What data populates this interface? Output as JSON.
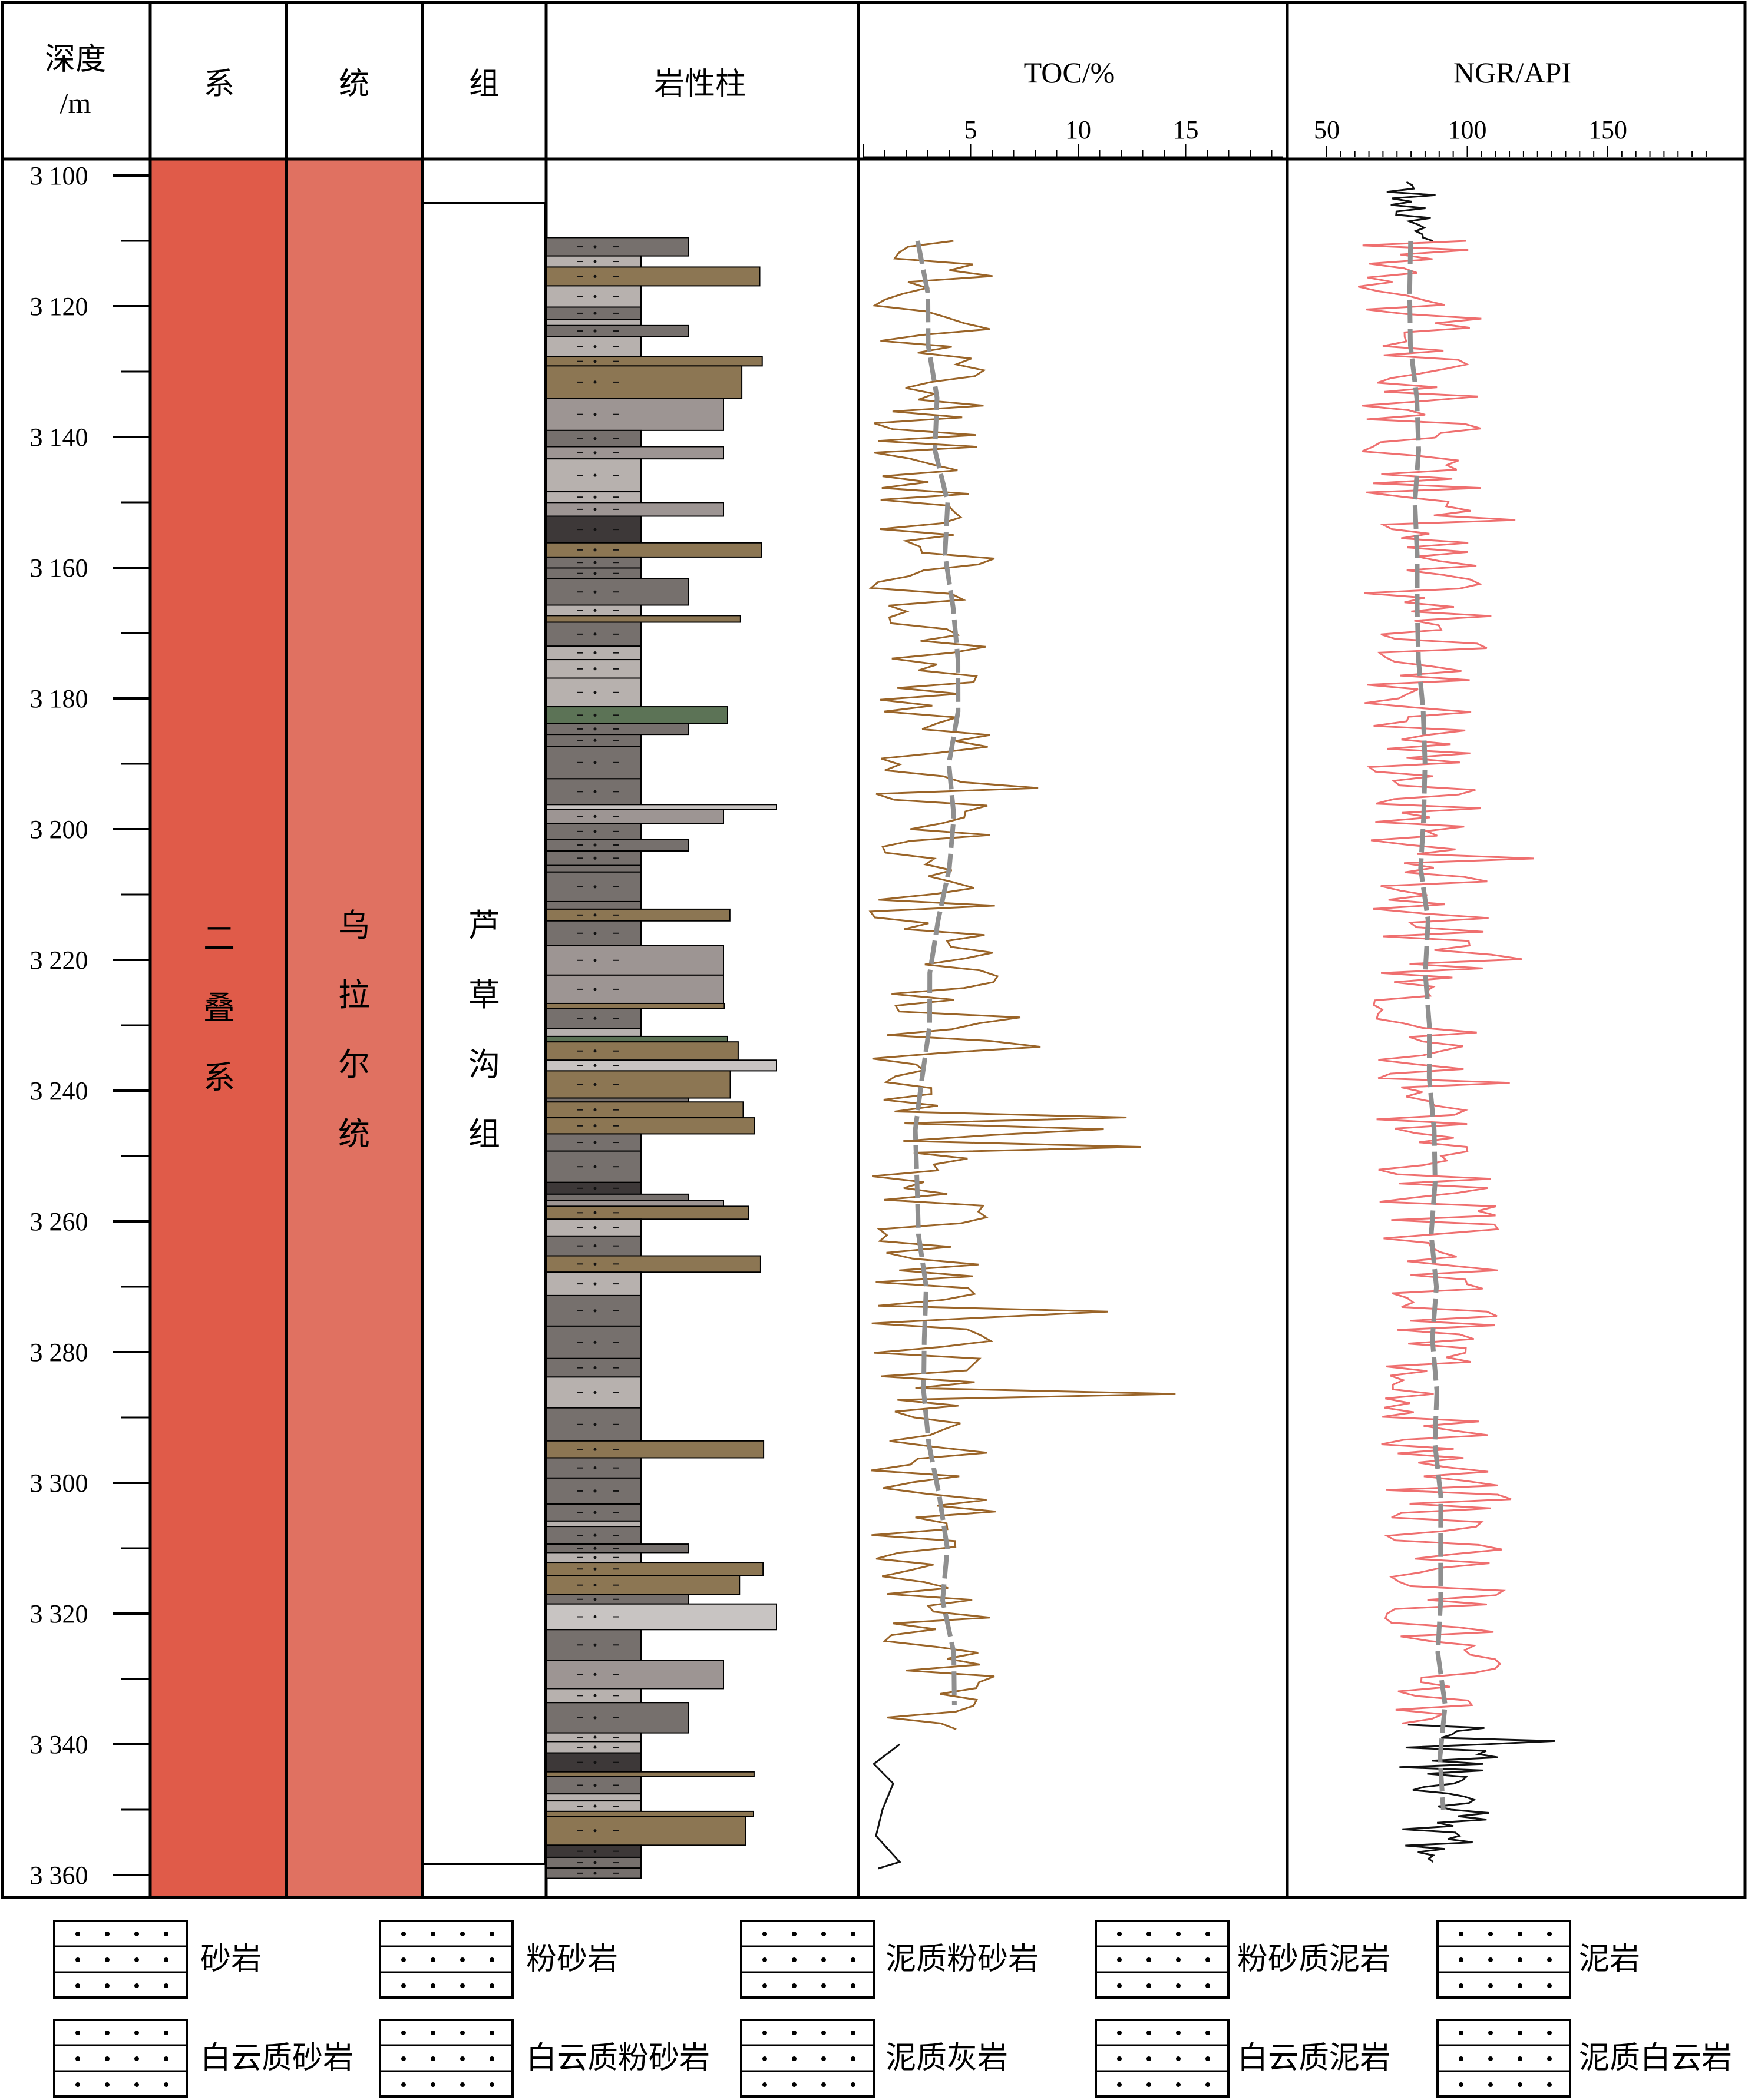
{
  "headers": {
    "depth": "深度",
    "depth_unit": "/m",
    "system": "系",
    "series": "统",
    "formation": "组",
    "lithology": "岩性柱",
    "toc": "TOC/%",
    "ngr": "NGR/API"
  },
  "depth_ticks": [
    "3 100",
    "3 120",
    "3 140",
    "3 160",
    "3 180",
    "3 200",
    "3 220",
    "3 240",
    "3 260",
    "3 280",
    "3 300",
    "3 320",
    "3 340",
    "3 360"
  ],
  "toc_ticks": [
    "5",
    "10",
    "15"
  ],
  "ngr_ticks": [
    "50",
    "100",
    "150"
  ],
  "units": {
    "system": [
      "二",
      "叠",
      "系"
    ],
    "series": [
      "乌",
      "拉",
      "尔",
      "统"
    ],
    "formation": [
      "芦",
      "草",
      "沟",
      "组"
    ]
  },
  "colors": {
    "system_fill": "#e05b49",
    "series_fill": "#e07161",
    "toc_curve": "#9a6428",
    "ngr_curve": "#ef6f6f",
    "trend_line": "#8f8f8f",
    "dark_curve": "#111111"
  },
  "legend": [
    {
      "label": "砂岩",
      "pattern": "sandstone"
    },
    {
      "label": "粉砂岩",
      "pattern": "siltstone"
    },
    {
      "label": "泥质粉砂岩",
      "pattern": "argillaceous-siltstone"
    },
    {
      "label": "粉砂质泥岩",
      "pattern": "silty-mudstone"
    },
    {
      "label": "泥岩",
      "pattern": "mudstone"
    },
    {
      "label": "白云质砂岩",
      "pattern": "dolomitic-sandstone"
    },
    {
      "label": "白云质粉砂岩",
      "pattern": "dolomitic-siltstone"
    },
    {
      "label": "泥质灰岩",
      "pattern": "argillaceous-limestone"
    },
    {
      "label": "白云质泥岩",
      "pattern": "dolomitic-mudstone"
    },
    {
      "label": "泥质白云岩",
      "pattern": "argillaceous-dolomite"
    }
  ],
  "chart_data": {
    "type": "line",
    "depth_axis": {
      "label": "深度 /m",
      "range": [
        3097,
        3363
      ]
    },
    "toc": {
      "label": "TOC/%",
      "range": [
        0,
        19.5
      ],
      "x_scale": "linear"
    },
    "ngr": {
      "label": "NGR/API",
      "range": [
        50,
        188
      ],
      "x_scale": "linear"
    }
  }
}
